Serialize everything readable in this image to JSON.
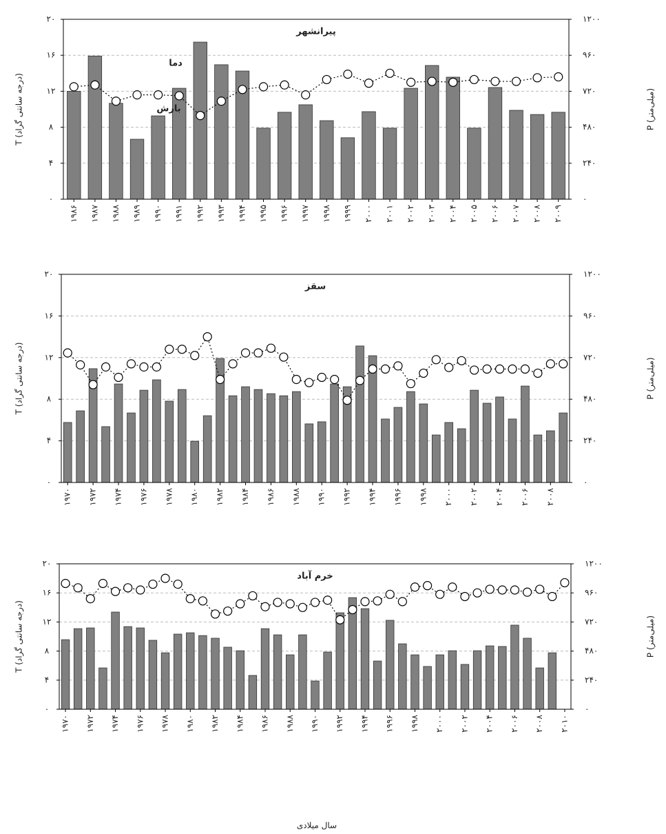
{
  "chart_data": [
    {
      "type": "bar",
      "title": "پیرانشهر",
      "ylabel": "T (درجه سانتی گراد)",
      "y2label": "P (میلی‌متر)",
      "annotations": [
        "دما",
        "بارش"
      ],
      "categories": [
        "۱۹۸۶",
        "۱۹۸۷",
        "۱۹۸۸",
        "۱۹۸۹",
        "۱۹۹۰",
        "۱۹۹۱",
        "۱۹۹۲",
        "۱۹۹۳",
        "۱۹۹۴",
        "۱۹۹۵",
        "۱۹۹۶",
        "۱۹۹۷",
        "۱۹۹۸",
        "۱۹۹۹",
        "۲۰۰۰",
        "۲۰۰۱",
        "۲۰۰۲",
        "۲۰۰۳",
        "۲۰۰۴",
        "۲۰۰۵",
        "۲۰۰۶",
        "۲۰۰۷",
        "۲۰۰۸",
        "۲۰۰۹"
      ],
      "series": [
        {
          "type": "bar",
          "axis": "y2",
          "color": "#808080",
          "values": [
            720,
            955,
            640,
            400,
            556,
            740,
            1048,
            897,
            855,
            474,
            580,
            630,
            524,
            410,
            584,
            474,
            740,
            892,
            814,
            474,
            745,
            593,
            565,
            580
          ]
        },
        {
          "type": "line",
          "axis": "y",
          "color": "#000000",
          "values": [
            12.5,
            12.7,
            10.9,
            11.6,
            11.6,
            11.5,
            9.3,
            10.9,
            12.2,
            12.5,
            12.7,
            11.6,
            13.3,
            13.9,
            12.9,
            14.0,
            13.0,
            13.1,
            13.0,
            13.3,
            13.1,
            13.1,
            13.5,
            13.6
          ]
        }
      ],
      "ylim": [
        0,
        20
      ],
      "yticks": [
        {
          "value": 0,
          "label": "۰"
        },
        {
          "value": 4,
          "label": "۴"
        },
        {
          "value": 8,
          "label": "۸"
        },
        {
          "value": 12,
          "label": "۱۲"
        },
        {
          "value": 16,
          "label": "۱۶"
        },
        {
          "value": 20,
          "label": "۲۰"
        }
      ],
      "y2lim": [
        0,
        1200
      ],
      "y2ticks": [
        {
          "value": 0,
          "label": "۰"
        },
        {
          "value": 240,
          "label": "۲۴۰"
        },
        {
          "value": 480,
          "label": "۴۸۰"
        },
        {
          "value": 720,
          "label": "۷۲۰"
        },
        {
          "value": 960,
          "label": "۹۶۰"
        },
        {
          "value": 1200,
          "label": "۱۲۰۰"
        }
      ],
      "grid": true
    },
    {
      "type": "bar",
      "title": "سقز",
      "ylabel": "T (درجه سانتی گراد)",
      "y2label": "P (میلی‌متر)",
      "categories": [
        "۱۹۷۰",
        null,
        "۱۹۷۲",
        null,
        "۱۹۷۴",
        null,
        "۱۹۷۶",
        null,
        "۱۹۷۸",
        null,
        "۱۹۸۰",
        null,
        "۱۹۸۲",
        null,
        "۱۹۸۴",
        null,
        "۱۹۸۶",
        null,
        "۱۹۸۸",
        null,
        "۱۹۹۰",
        null,
        "۱۹۹۲",
        null,
        "۱۹۹۴",
        null,
        "۱۹۹۶",
        null,
        "۱۹۹۸",
        null,
        "۲۰۰۰",
        null,
        "۲۰۰۲",
        null,
        "۲۰۰۴",
        null,
        "۲۰۰۶",
        null,
        "۲۰۰۸",
        null
      ],
      "series": [
        {
          "type": "bar",
          "axis": "y2",
          "color": "#808080",
          "values": [
            346,
            413,
            656,
            322,
            568,
            401,
            532,
            592,
            469,
            536,
            238,
            385,
            715,
            500,
            552,
            536,
            512,
            500,
            524,
            338,
            350,
            568,
            552,
            787,
            731,
            366,
            433,
            524,
            453,
            274,
            346,
            310,
            532,
            457,
            493,
            366,
            556,
            274,
            298,
            401
          ]
        },
        {
          "type": "line",
          "axis": "y",
          "color": "#000000",
          "values": [
            12.45,
            11.3,
            9.4,
            11.1,
            10.1,
            11.4,
            11.1,
            11.1,
            12.8,
            12.8,
            12.2,
            14.0,
            9.9,
            11.4,
            12.45,
            12.45,
            12.9,
            12.05,
            9.9,
            9.6,
            10.1,
            9.9,
            7.9,
            9.8,
            10.9,
            10.9,
            11.2,
            9.5,
            10.5,
            11.8,
            11.05,
            11.7,
            10.8,
            10.9,
            10.9,
            10.9,
            10.9,
            10.5,
            11.4,
            11.4
          ]
        }
      ],
      "ylim": [
        0,
        20
      ],
      "yticks": [
        {
          "value": 0,
          "label": "۰"
        },
        {
          "value": 4,
          "label": "۴"
        },
        {
          "value": 8,
          "label": "۸"
        },
        {
          "value": 12,
          "label": "۱۲"
        },
        {
          "value": 16,
          "label": "۱۶"
        },
        {
          "value": 20,
          "label": "۲۰"
        }
      ],
      "y2lim": [
        0,
        1200
      ],
      "y2ticks": [
        {
          "value": 0,
          "label": "۰"
        },
        {
          "value": 240,
          "label": "۲۴۰"
        },
        {
          "value": 480,
          "label": "۴۸۰"
        },
        {
          "value": 720,
          "label": "۷۲۰"
        },
        {
          "value": 960,
          "label": "۹۶۰"
        },
        {
          "value": 1200,
          "label": "۱۲۰۰"
        }
      ],
      "grid": true
    },
    {
      "type": "bar",
      "title": "خرم آباد",
      "ylabel": "T (درجه سانتی گراد)",
      "y2label": "P (میلی‌متر)",
      "xlabel": "سال میلادی",
      "categories": [
        "۱۹۷۰",
        null,
        "۱۹۷۲",
        null,
        "۱۹۷۴",
        null,
        "۱۹۷۶",
        null,
        "۱۹۷۸",
        null,
        "۱۹۸۰",
        null,
        "۱۹۸۲",
        null,
        "۱۹۸۴",
        null,
        "۱۹۸۶",
        null,
        "۱۹۸۸",
        null,
        "۱۹۹۰",
        null,
        "۱۹۹۲",
        null,
        "۱۹۹۴",
        null,
        "۱۹۹۶",
        null,
        "۱۹۹۸",
        null,
        "۲۰۰۰",
        null,
        "۲۰۰۲",
        null,
        "۲۰۰۴",
        null,
        "۲۰۰۶",
        null,
        "۲۰۰۸",
        null,
        "۲۰۱۰"
      ],
      "series": [
        {
          "type": "bar",
          "axis": "y2",
          "color": "#808080",
          "values": [
            574,
            665,
            671,
            341,
            802,
            682,
            671,
            569,
            466,
            620,
            631,
            608,
            586,
            512,
            483,
            279,
            665,
            614,
            449,
            614,
            233,
            472,
            796,
            921,
            830,
            398,
            734,
            540,
            449,
            353,
            449,
            483,
            370,
            483,
            523,
            518,
            694,
            586,
            341,
            466,
            null
          ]
        },
        {
          "type": "line",
          "axis": "y",
          "color": "#000000",
          "values": [
            17.3,
            16.7,
            15.2,
            17.3,
            16.2,
            16.7,
            16.4,
            17.2,
            18.0,
            17.2,
            15.2,
            14.9,
            13.1,
            13.5,
            14.5,
            15.6,
            14.1,
            14.7,
            14.5,
            14.0,
            14.7,
            15.0,
            12.3,
            13.7,
            14.8,
            14.9,
            15.8,
            14.8,
            16.8,
            17.0,
            15.8,
            16.8,
            15.5,
            16.0,
            16.5,
            16.4,
            16.4,
            16.1,
            16.5,
            15.5,
            17.4
          ]
        }
      ],
      "ylim": [
        0,
        20
      ],
      "yticks": [
        {
          "value": 0,
          "label": "۰"
        },
        {
          "value": 4,
          "label": "۴"
        },
        {
          "value": 8,
          "label": "۸"
        },
        {
          "value": 12,
          "label": "۱۲"
        },
        {
          "value": 16,
          "label": "۱۶"
        },
        {
          "value": 20,
          "label": "۲۰"
        }
      ],
      "y2lim": [
        0,
        1200
      ],
      "y2ticks": [
        {
          "value": 0,
          "label": "۰"
        },
        {
          "value": 240,
          "label": "۲۴۰"
        },
        {
          "value": 480,
          "label": "۴۸۰"
        },
        {
          "value": 720,
          "label": "۷۲۰"
        },
        {
          "value": 960,
          "label": "۹۶۰"
        },
        {
          "value": 1200,
          "label": "۱۲۰۰"
        }
      ],
      "grid": true
    }
  ]
}
